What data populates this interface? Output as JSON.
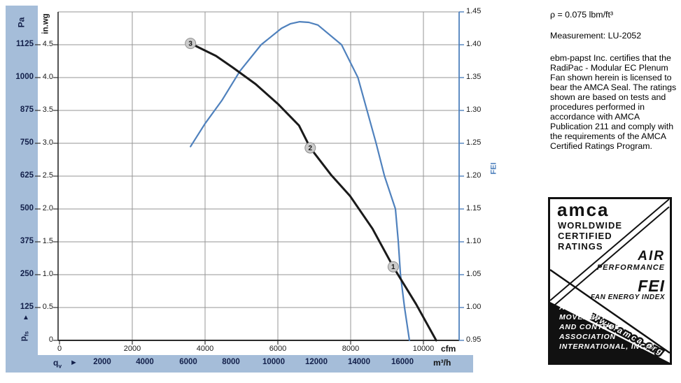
{
  "colors": {
    "band_blue": "#a5bdd9",
    "grid_gray": "#969696",
    "axis_black": "#2b2b2b",
    "fei_blue": "#4f81bd",
    "fan_curve_black": "#1a1a1a",
    "marker_fill": "#cbcbcb",
    "navy_text": "#13204a"
  },
  "axes": {
    "pa": {
      "label": "Pa",
      "values": [
        "1125",
        "1000",
        "875",
        "750",
        "625",
        "500",
        "375",
        "250",
        "125"
      ],
      "arrow": "▲",
      "pressure_symbol": "p",
      "pressure_sub": "fs"
    },
    "inwg": {
      "label": "in.wg",
      "values": [
        "4.5",
        "4.0",
        "3.5",
        "3.0",
        "2.5",
        "2.0",
        "1.5",
        "1.0",
        "0.5",
        "0"
      ]
    },
    "fei": {
      "label": "FEI",
      "values": [
        "1.45",
        "1.40",
        "1.35",
        "1.30",
        "1.25",
        "1.20",
        "1.15",
        "1.10",
        "1.05",
        "1.00",
        "0.95"
      ]
    },
    "cfm": {
      "unit": "cfm",
      "values": [
        "0",
        "2000",
        "4000",
        "6000",
        "8000",
        "10000"
      ]
    },
    "m3h": {
      "unit": "m³/h",
      "flow_symbol": "q",
      "flow_sub": "v",
      "arrow": "►",
      "values": [
        "2000",
        "4000",
        "6000",
        "8000",
        "10000",
        "12000",
        "14000",
        "16000"
      ]
    }
  },
  "chart_data": {
    "type": "line",
    "title": "",
    "xlabel_primary": "cfm",
    "xlabel_secondary": "m³/h",
    "x_range_cfm": [
      0,
      11000
    ],
    "ylabel_left": "in.wg",
    "y_left_range": [
      0,
      5
    ],
    "ylabel_left_secondary": "Pa",
    "y_left_secondary_range": [
      0,
      1250
    ],
    "ylabel_right": "FEI",
    "y_right_range": [
      0.95,
      1.45
    ],
    "grid": true,
    "series": [
      {
        "name": "fan-pressure-curve",
        "y_axis": "left",
        "color": "#1a1a1a",
        "points": [
          [
            3600,
            4.52
          ],
          [
            4300,
            4.33
          ],
          [
            4770,
            4.15
          ],
          [
            5390,
            3.9
          ],
          [
            6000,
            3.6
          ],
          [
            6580,
            3.27
          ],
          [
            6890,
            2.93
          ],
          [
            7460,
            2.52
          ],
          [
            7980,
            2.2
          ],
          [
            8600,
            1.7
          ],
          [
            9170,
            1.12
          ],
          [
            9800,
            0.55
          ],
          [
            10350,
            0
          ]
        ]
      },
      {
        "name": "fei-curve",
        "y_axis": "right",
        "color": "#4f81bd",
        "points": [
          [
            3600,
            1.245
          ],
          [
            4000,
            1.28
          ],
          [
            4460,
            1.315
          ],
          [
            4960,
            1.36
          ],
          [
            5540,
            1.4
          ],
          [
            6100,
            1.425
          ],
          [
            6350,
            1.432
          ],
          [
            6600,
            1.435
          ],
          [
            6850,
            1.434
          ],
          [
            7100,
            1.43
          ],
          [
            7750,
            1.4
          ],
          [
            8200,
            1.35
          ],
          [
            8450,
            1.3
          ],
          [
            8700,
            1.25
          ],
          [
            8930,
            1.2
          ],
          [
            9230,
            1.15
          ],
          [
            9310,
            1.1
          ],
          [
            9370,
            1.05
          ],
          [
            9480,
            1.0
          ],
          [
            9615,
            0.95
          ]
        ]
      }
    ],
    "operating_points": [
      {
        "label": "1",
        "cfm": 9170,
        "inwg": 1.12
      },
      {
        "label": "2",
        "cfm": 6890,
        "inwg": 2.93
      },
      {
        "label": "3",
        "cfm": 3600,
        "inwg": 4.52
      }
    ]
  },
  "info": {
    "density": "ρ = 0.075 lbm/ft³",
    "measurement": "Measurement: LU-2052",
    "certification": "ebm-papst Inc. certifies that the RadiPac - Modular EC Plenum Fan shown herein is licensed to bear the AMCA Seal. The ratings shown are based on tests and procedures performed in accordance with AMCA Publication 211 and comply with the requirements of the AMCA Certified Ratings Program."
  },
  "seal": {
    "brand": "amca",
    "line1": "WORLDWIDE",
    "line2": "CERTIFIED",
    "line3": "RATINGS",
    "air": "AIR",
    "performance": "PERFORMANCE",
    "fei": "FEI",
    "fei_sub": "FAN ENERGY INDEX",
    "org_lines": [
      "AIR",
      "MOVEMENT",
      "AND CONTROL",
      "ASSOCIATION",
      "INTERNATIONAL, INC.®"
    ],
    "url": "www.amca.org"
  }
}
